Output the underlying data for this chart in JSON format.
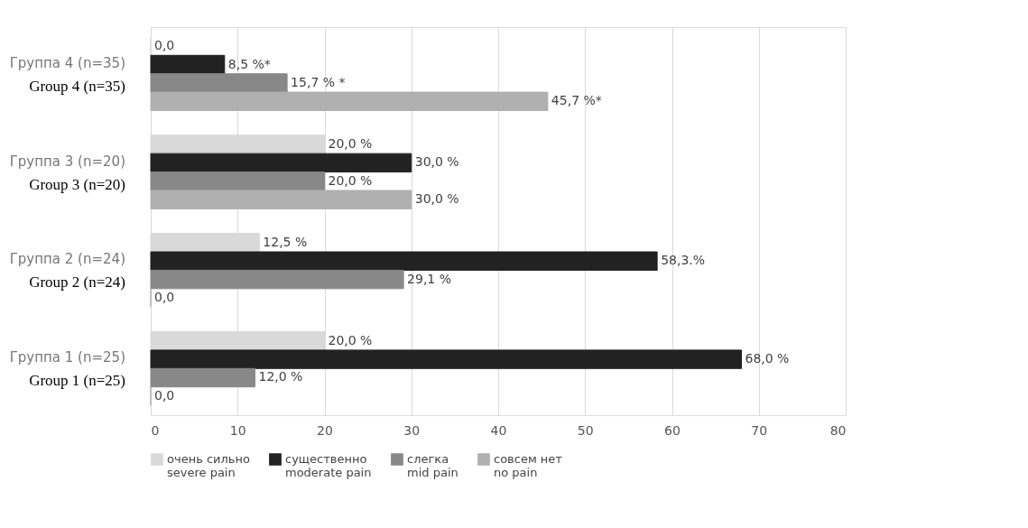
{
  "chart_data": {
    "type": "bar",
    "orientation": "horizontal",
    "categories": [
      "Группа 4 (n=35)\nGroup 4 (n=35)",
      "Группа 3 (n=20)\nGroup 3 (n=20)",
      "Группа 2 (n=24)\nGroup 2 (n=24)",
      "Группа 1 (n=25)\nGroup 1 (n=25)"
    ],
    "series": [
      {
        "name": "очень сильно\nsevere pain",
        "color": "#d9d9d9",
        "values": [
          0,
          20,
          12.5,
          20
        ],
        "value_labels": [
          "0,0",
          "20,0 %",
          "12,5 %",
          "20,0 %"
        ]
      },
      {
        "name": "существенно\nmoderate pain",
        "color": "#222222",
        "values": [
          8.5,
          30,
          58.3,
          68
        ],
        "value_labels": [
          "8,5 %*",
          "30,0 %",
          "58,3.%",
          "68,0 %"
        ]
      },
      {
        "name": "слегка\nmid pain",
        "color": "#888888",
        "values": [
          15.7,
          20,
          29.1,
          12
        ],
        "value_labels": [
          "15,7 % *",
          "20,0 %",
          "29,1 %",
          "12,0 %"
        ]
      },
      {
        "name": "совсем нет\nno pain",
        "color": "#b0b0b0",
        "values": [
          45.7,
          30,
          0,
          0
        ],
        "value_labels": [
          "45,7 %*",
          "30,0 %",
          "0,0",
          "0,0"
        ]
      }
    ],
    "xlim": [
      0,
      80
    ],
    "xticks": [
      0,
      10,
      20,
      30,
      40,
      50,
      60,
      70,
      80
    ],
    "grid": "x",
    "legend": "bottom"
  }
}
